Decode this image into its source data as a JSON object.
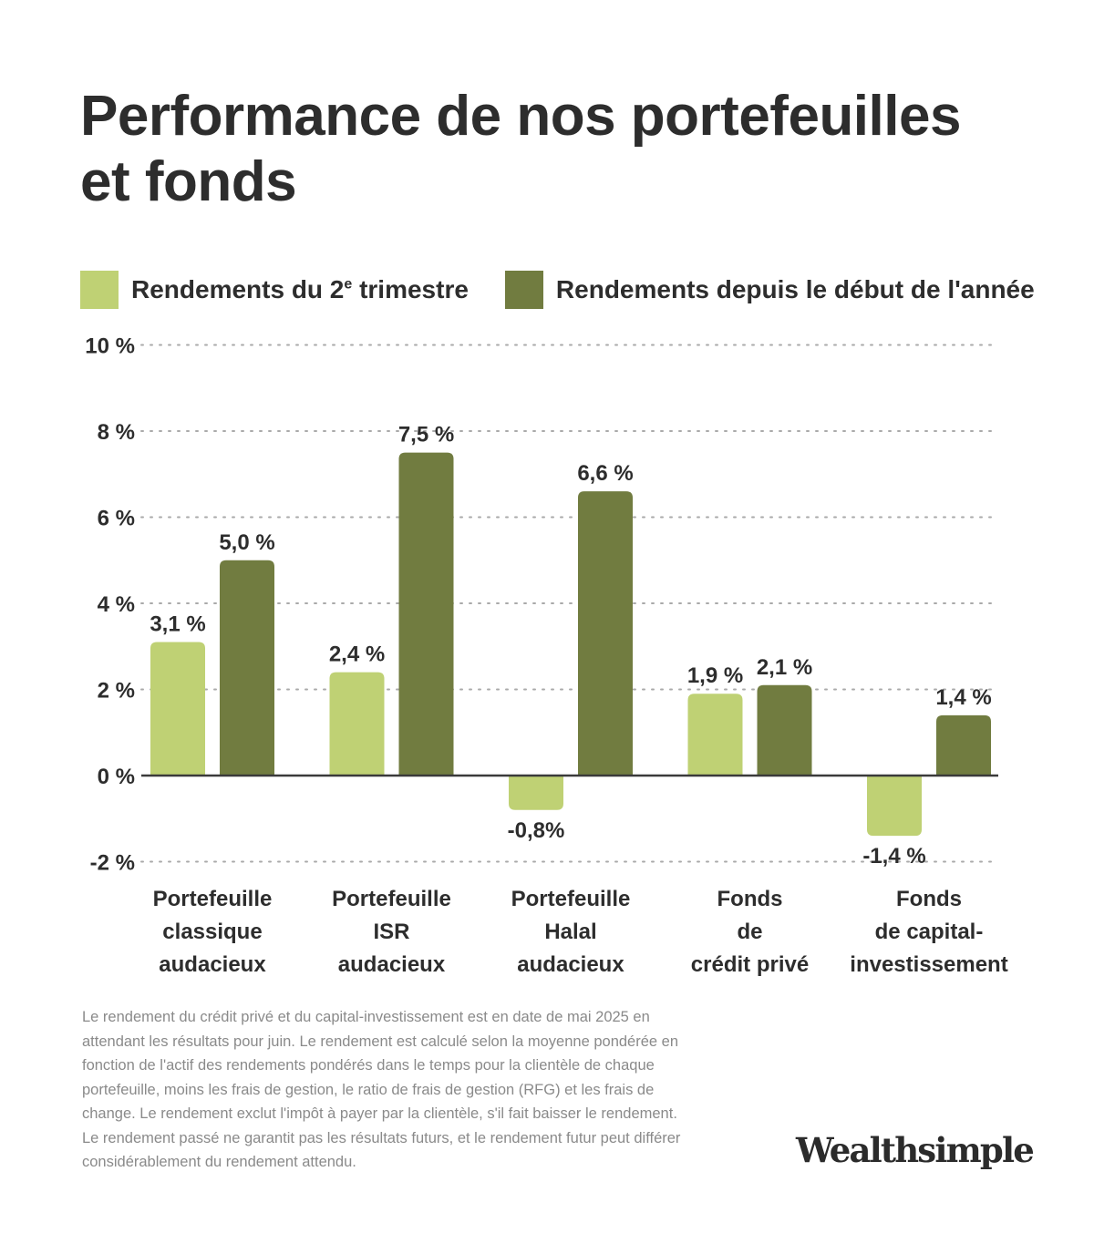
{
  "header": {
    "title": "Performance de nos portefeuilles et fonds"
  },
  "legend": {
    "series1_label": "Rendements du 2",
    "series1_sup": "e",
    "series1_label_end": " trimestre",
    "series2_label": "Rendements depuis le début de l'année"
  },
  "colors": {
    "series1": "#bfd174",
    "series2": "#717c40",
    "axis": "#3a3a3a",
    "grid": "#aaaaaa",
    "text": "#2d2d2d"
  },
  "chart_data": {
    "type": "bar",
    "categories": [
      [
        "Portefeuille",
        "classique",
        "audacieux"
      ],
      [
        "Portefeuille",
        "ISR",
        "audacieux"
      ],
      [
        "Portefeuille",
        "Halal",
        "audacieux"
      ],
      [
        "Fonds",
        "de",
        "crédit privé"
      ],
      [
        "Fonds",
        "de capital-",
        "investissement"
      ]
    ],
    "series": [
      {
        "name": "Rendements du 2e trimestre",
        "values": [
          3.1,
          2.4,
          -0.8,
          1.9,
          -1.4
        ],
        "labels": [
          "3,1 %",
          "2,4 %",
          "-0,8%",
          "1,9 %",
          "-1,4 %"
        ]
      },
      {
        "name": "Rendements depuis le début de l'année",
        "values": [
          5.0,
          7.5,
          6.6,
          2.1,
          1.4
        ],
        "labels": [
          "5,0 %",
          "7,5 %",
          "6,6 %",
          "2,1 %",
          "1,4 %"
        ]
      }
    ],
    "yticks": [
      -2,
      0,
      2,
      4,
      6,
      8,
      10
    ],
    "ytick_labels": [
      "-2 %",
      "0 %",
      "2 %",
      "4 %",
      "6 %",
      "8 %",
      "10 %"
    ],
    "ylim": [
      -2,
      10
    ],
    "grid": true,
    "legend": "top-left"
  },
  "footnote": "Le rendement du crédit privé et du capital-investissement est en date de mai 2025 en attendant les résultats pour juin. Le rendement est calculé selon la moyenne pondérée en fonction de l'actif des rendements pondérés dans le temps pour la clientèle de chaque portefeuille, moins les frais de gestion, le ratio de frais de gestion (RFG) et les frais de change. Le rendement exclut l'impôt à payer par la clientèle, s'il fait baisser le rendement. Le rendement passé ne garantit pas les résultats futurs, et le rendement futur peut différer considérablement du rendement attendu.",
  "brand": {
    "logo_text": "Wealthsimple"
  }
}
